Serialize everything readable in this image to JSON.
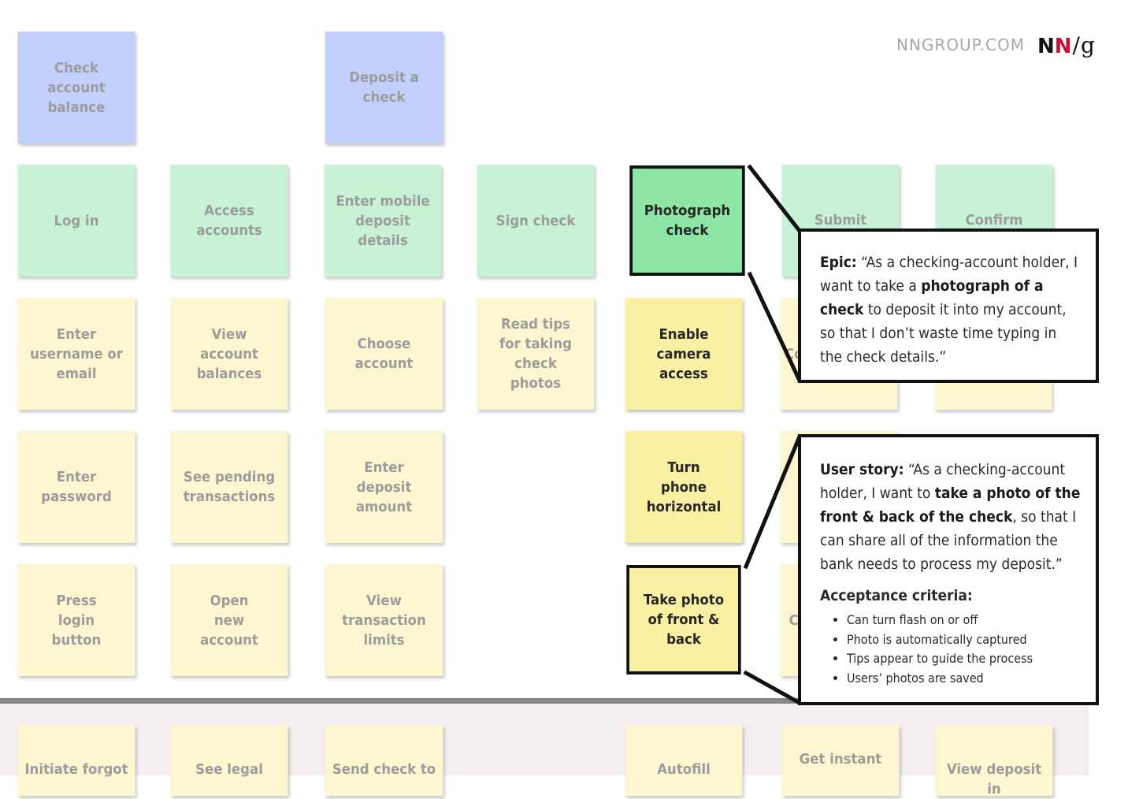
{
  "brand": {
    "url": "NNGROUP.COM",
    "mark_n1": "N",
    "mark_n2": "N",
    "mark_sep": "/",
    "mark_g": "g"
  },
  "activities": {
    "check_balance": "Check account balance",
    "deposit_check": "Deposit a check"
  },
  "steps": {
    "log_in": "Log in",
    "access_accounts": "Access accounts",
    "enter_mobile_deposit": "Enter mobile deposit details",
    "sign_check": "Sign check",
    "photograph_check": "Photograph check",
    "submit_deposit": "Submit deposit",
    "confirm_deposit": "Confirm deposit"
  },
  "stories": {
    "enter_username": "Enter username or email",
    "view_balances": "View account balances",
    "choose_account": "Choose account",
    "read_tips": "Read tips for taking check photos",
    "enable_camera": "Enable camera access",
    "enter_password": "Enter password",
    "see_pending": "See pending transactions",
    "enter_amount": "Enter deposit amount",
    "turn_phone": "Turn phone horizontal",
    "press_login": "Press login button",
    "open_account": "Open new account",
    "view_limits": "View transaction limits",
    "take_photo": "Take photo of front & back",
    "hidden_row3": "Co",
    "hidden_row5": "C"
  },
  "release": {
    "initiate_forgot": "Initiate forgot",
    "see_legal": "See legal",
    "send_check": "Send check to",
    "autofill": "Autofill",
    "get_instant": "Get instant",
    "view_deposit": "View deposit in"
  },
  "epic_callout": {
    "label": "Epic:",
    "pre": " “As a checking-account holder, I want to take a ",
    "bold": "photograph of a check",
    "post": " to deposit it into my account, so that I don’t waste time typing in the check details.”"
  },
  "story_callout": {
    "label": "User story:",
    "pre": " “As a checking-account holder, I want to ",
    "bold": "take a photo of the front & back of the check",
    "post": ", so that I can share all of the information the bank needs to process my deposit.”",
    "criteria_title": "Acceptance criteria:",
    "criteria": [
      "Can turn flash on or off",
      "Photo is automatically captured",
      "Tips appear to guide the process",
      "Users’ photos are saved"
    ]
  },
  "colors": {
    "activity": "#c3cffc",
    "step": "#c8f2d5",
    "story": "#fcf7d1",
    "highlight_story": "#faf0a4",
    "highlight_step": "#8ee6a6",
    "release_band": "#f4eef0",
    "brand_red": "#c8102e"
  }
}
